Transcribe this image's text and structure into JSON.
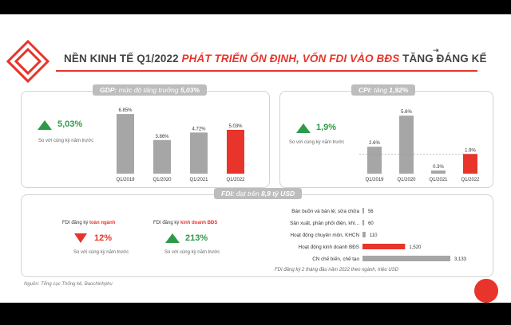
{
  "header": {
    "title_prefix": "NỀN KINH TẾ Q1/2022 ",
    "title_highlight": "PHÁT TRIỂN ỔN ĐỊNH, VỐN FDI VÀO BĐS",
    "title_suffix": " TĂNG ĐÁNG KỂ"
  },
  "colors": {
    "accent": "#e8342a",
    "bar": "#a6a6a6",
    "up": "#2e9a48"
  },
  "gdp": {
    "pill_prefix": "GDP: ",
    "pill_rest": "mức độ tăng trưởng ",
    "pill_value": "5,03%",
    "kpi": "5,03%",
    "kpi_note": "So với cùng kỳ năm trước"
  },
  "cpi": {
    "pill_prefix": "CPI: ",
    "pill_rest": "tăng ",
    "pill_value": "1,92%",
    "kpi": "1,9%",
    "kpi_note": "So với cùng kỳ năm trước"
  },
  "fdi": {
    "pill_prefix": "FDI: ",
    "pill_rest": "đạt trên ",
    "pill_value": "8,9 tỷ USD",
    "total_label_prefix": "FDI đăng ký ",
    "total_label_hl": "toàn ngành",
    "total_value": "12%",
    "total_note": "So với cùng kỳ năm trước",
    "re_label_prefix": "FDI đăng ký ",
    "re_label_hl": "kinh doanh BĐS",
    "re_value": "213%",
    "re_note": "So với cùng kỳ năm trước",
    "footnote": "FDI đăng ký 2 tháng đầu năm 2022 theo ngành, triệu USD"
  },
  "source": "Nguồn: Tổng cục Thống kê, Baochinhphu",
  "chart_data": [
    {
      "type": "bar",
      "name": "GDP",
      "categories": [
        "Q1/2019",
        "Q1/2020",
        "Q1/2021",
        "Q1/2022"
      ],
      "values": [
        6.85,
        3.86,
        4.72,
        5.03
      ],
      "labels": [
        "6.85%",
        "3.86%",
        "4.72%",
        "5.03%"
      ],
      "highlight_index": 3,
      "ylim": [
        0,
        7.5
      ]
    },
    {
      "type": "bar",
      "name": "CPI",
      "categories": [
        "Q1/2019",
        "Q1/2020",
        "Q1/2021",
        "Q1/2022"
      ],
      "values": [
        2.6,
        5.6,
        0.3,
        1.9
      ],
      "labels": [
        "2.6%",
        "5.6%",
        "0.3%",
        "1.9%"
      ],
      "highlight_index": 3,
      "ylim": [
        0,
        6
      ]
    },
    {
      "type": "bar",
      "orientation": "horizontal",
      "name": "FDI",
      "categories": [
        "Bán buôn và bán lẻ; sửa chữa",
        "Sản xuất, phân phối điện, khí...",
        "Hoạt động chuyên môn, KHCN",
        "Hoạt động kinh doanh BĐS",
        "CN chế biến, chế tạo"
      ],
      "values": [
        56,
        60,
        110,
        1520,
        3133
      ],
      "labels": [
        "56",
        "60",
        "110",
        "1,520",
        "3,133"
      ],
      "highlight_index": 3,
      "xlim": [
        0,
        3133
      ]
    }
  ]
}
